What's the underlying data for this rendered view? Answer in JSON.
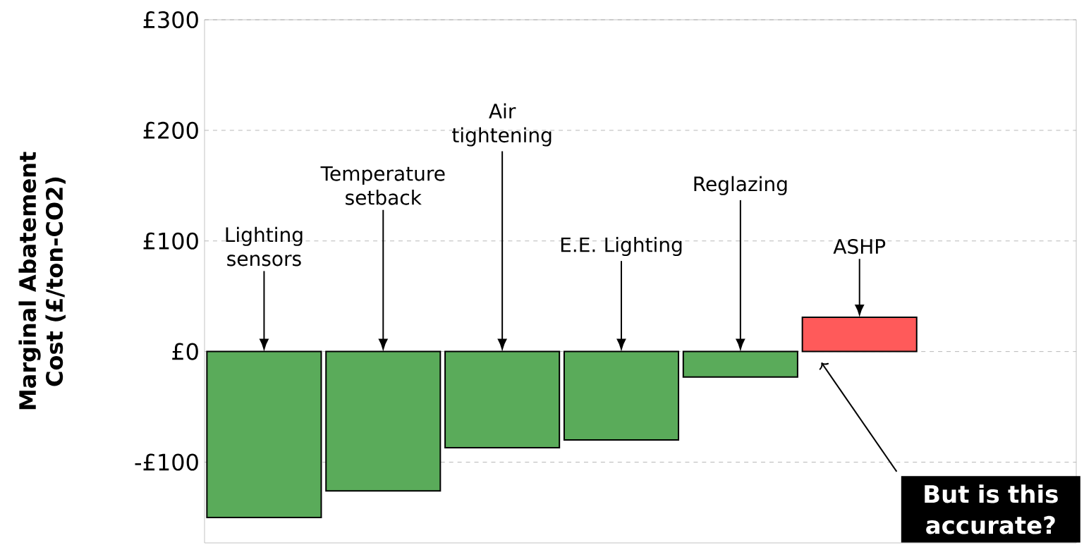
{
  "chart_data": {
    "type": "bar",
    "ylabel": "Marginal Abatement Cost (£/ton-CO2)",
    "categories": [
      "Lighting sensors",
      "Temperature setback",
      "Air tightening",
      "E.E. Lighting",
      "Reglazing",
      "ASHP"
    ],
    "values": [
      -150,
      -126,
      -87,
      -80,
      -23,
      31
    ],
    "colors": [
      "#5aab5a",
      "#5aab5a",
      "#5aab5a",
      "#5aab5a",
      "#5aab5a",
      "#ff5a5a"
    ],
    "ylim": [
      -173,
      300
    ],
    "yticks": [
      {
        "value": -100,
        "label": "-£100"
      },
      {
        "value": 0,
        "label": "£0"
      },
      {
        "value": 100,
        "label": "£100"
      },
      {
        "value": 200,
        "label": "£200"
      },
      {
        "value": 300,
        "label": "£300"
      }
    ],
    "grid": "y",
    "annotations": [
      "But is this accurate?"
    ]
  }
}
